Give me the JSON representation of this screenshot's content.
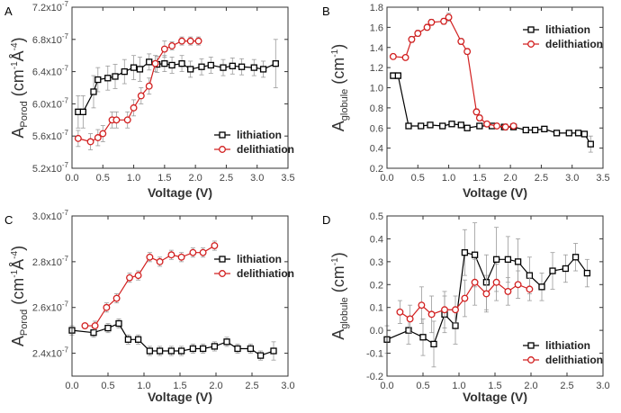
{
  "chart_data": [
    {
      "type": "line",
      "panel": "A",
      "xlabel": "Voltage (V)",
      "ylabel": {
        "main": "A",
        "sub": "Porod",
        "rest": " (cm",
        "sup": "-1",
        "rest2": "Å",
        "sup2": "-4",
        "end": ")"
      },
      "xlim": [
        0,
        3.5
      ],
      "ylim": [
        5.2e-07,
        7.2e-07
      ],
      "xticks": [
        0.0,
        0.5,
        1.0,
        1.5,
        2.0,
        2.5,
        3.0,
        3.5
      ],
      "xtick_labels": [
        "0.0",
        "0.5",
        "1.0",
        "1.5",
        "2.0",
        "2.5",
        "3.0",
        "3.5"
      ],
      "yticks": [
        5.2e-07,
        5.6e-07,
        6e-07,
        6.4e-07,
        6.8e-07,
        7.2e-07
      ],
      "ytick_labels": [
        "5.2x10-7",
        "5.6x10-7",
        "6.0x10-7",
        "6.4x10-7",
        "6.8x10-7",
        "7.2x10-7"
      ],
      "legend_position": "bottom-right",
      "series": [
        {
          "name": "lithiation",
          "color": "#000000",
          "marker": "square",
          "x": [
            0.1,
            0.18,
            0.35,
            0.42,
            0.58,
            0.7,
            0.85,
            1.0,
            1.1,
            1.25,
            1.38,
            1.5,
            1.62,
            1.78,
            1.92,
            2.1,
            2.25,
            2.45,
            2.6,
            2.75,
            2.95,
            3.1,
            3.3
          ],
          "y": [
            5.9e-07,
            5.9e-07,
            6.15e-07,
            6.3e-07,
            6.32e-07,
            6.34e-07,
            6.4e-07,
            6.45e-07,
            6.43e-07,
            6.52e-07,
            6.49e-07,
            6.5e-07,
            6.48e-07,
            6.5e-07,
            6.43e-07,
            6.46e-07,
            6.48e-07,
            6.45e-07,
            6.47e-07,
            6.46e-07,
            6.45e-07,
            6.43e-07,
            6.5e-07
          ],
          "err": [
            2e-08,
            2e-08,
            2e-08,
            1.5e-08,
            1.5e-08,
            1.5e-08,
            1.5e-08,
            1.5e-08,
            1.5e-08,
            1e-08,
            1e-08,
            1e-08,
            1e-08,
            1e-08,
            1e-08,
            1e-08,
            1e-08,
            1e-08,
            1e-08,
            1e-08,
            1e-08,
            1e-08,
            3e-08
          ]
        },
        {
          "name": "delithiation",
          "color": "#d22020",
          "marker": "circle",
          "x": [
            0.1,
            0.3,
            0.42,
            0.5,
            0.65,
            0.72,
            0.9,
            1.0,
            1.12,
            1.25,
            1.35,
            1.5,
            1.62,
            1.78,
            1.92,
            2.05
          ],
          "y": [
            5.57e-07,
            5.53e-07,
            5.58e-07,
            5.63e-07,
            5.8e-07,
            5.8e-07,
            5.8e-07,
            5.95e-07,
            6.1e-07,
            6.22e-07,
            6.5e-07,
            6.68e-07,
            6.72e-07,
            6.78e-07,
            6.78e-07,
            6.78e-07
          ],
          "err": [
            1e-08,
            1e-08,
            1e-08,
            1e-08,
            1e-08,
            1e-08,
            1e-08,
            1e-08,
            1e-08,
            1e-08,
            1e-08,
            1e-08,
            5e-09,
            5e-09,
            5e-09,
            5e-09
          ]
        }
      ]
    },
    {
      "type": "line",
      "panel": "B",
      "xlabel": "Voltage (V)",
      "ylabel": {
        "main": "A",
        "sub": "globule",
        "rest": " (cm",
        "sup": "-1",
        "end": ")"
      },
      "xlim": [
        0,
        3.5
      ],
      "ylim": [
        0.2,
        1.8
      ],
      "xticks": [
        0.0,
        0.5,
        1.0,
        1.5,
        2.0,
        2.5,
        3.0,
        3.5
      ],
      "xtick_labels": [
        "0.0",
        "0.5",
        "1.0",
        "1.5",
        "2.0",
        "2.5",
        "3.0",
        "3.5"
      ],
      "yticks": [
        0.2,
        0.4,
        0.6,
        0.8,
        1.0,
        1.2,
        1.4,
        1.6,
        1.8
      ],
      "ytick_labels": [
        "0.2",
        "0.4",
        "0.6",
        "0.8",
        "1.0",
        "1.2",
        "1.4",
        "1.6",
        "1.8"
      ],
      "legend_position": "top-right",
      "series": [
        {
          "name": "lithiation",
          "color": "#000000",
          "marker": "square",
          "x": [
            0.1,
            0.18,
            0.35,
            0.55,
            0.7,
            0.9,
            1.05,
            1.2,
            1.3,
            1.5,
            1.7,
            1.9,
            2.05,
            2.25,
            2.4,
            2.55,
            2.75,
            2.95,
            3.1,
            3.2,
            3.3
          ],
          "y": [
            1.12,
            1.12,
            0.62,
            0.62,
            0.63,
            0.62,
            0.64,
            0.63,
            0.6,
            0.62,
            0.62,
            0.61,
            0.61,
            0.58,
            0.58,
            0.59,
            0.55,
            0.55,
            0.55,
            0.54,
            0.44
          ],
          "err": [
            0.03,
            0.03,
            0.02,
            0.02,
            0.02,
            0.02,
            0.02,
            0.02,
            0.02,
            0.02,
            0.02,
            0.02,
            0.02,
            0.02,
            0.02,
            0.02,
            0.02,
            0.02,
            0.02,
            0.02,
            0.08
          ]
        },
        {
          "name": "delithiation",
          "color": "#d22020",
          "marker": "circle",
          "x": [
            0.1,
            0.3,
            0.4,
            0.5,
            0.65,
            0.72,
            0.92,
            1.0,
            1.2,
            1.3,
            1.45,
            1.5,
            1.62,
            1.78,
            1.92,
            2.05
          ],
          "y": [
            1.31,
            1.3,
            1.48,
            1.54,
            1.6,
            1.65,
            1.66,
            1.7,
            1.46,
            1.36,
            0.76,
            0.7,
            0.64,
            0.62,
            0.61,
            0.62
          ],
          "err": [
            0.02,
            0.02,
            0.03,
            0.03,
            0.03,
            0.03,
            0.03,
            0.04,
            0.03,
            0.03,
            0.03,
            0.03,
            0.02,
            0.02,
            0.02,
            0.02
          ]
        }
      ]
    },
    {
      "type": "line",
      "panel": "C",
      "xlabel": "Voltage (V)",
      "ylabel": {
        "main": "A",
        "sub": "Porod",
        "rest": " (cm",
        "sup": "-1",
        "rest2": "Å",
        "sup2": "-4",
        "end": ")"
      },
      "xlim": [
        0,
        3.0
      ],
      "ylim": [
        2.3e-07,
        3e-07
      ],
      "xticks": [
        0.0,
        0.5,
        1.0,
        1.5,
        2.0,
        2.5,
        3.0
      ],
      "xtick_labels": [
        "0.0",
        "0.5",
        "1.0",
        "1.5",
        "2.0",
        "2.5",
        "3.0"
      ],
      "yticks": [
        2.4e-07,
        2.6e-07,
        2.8e-07,
        3e-07
      ],
      "ytick_labels": [
        "2.4x10-7",
        "2.6x10-7",
        "2.8x10-7",
        "3.0x10-7"
      ],
      "legend_position": "top-right",
      "series": [
        {
          "name": "lithiation",
          "color": "#000000",
          "marker": "square",
          "x": [
            0.0,
            0.3,
            0.5,
            0.65,
            0.78,
            0.92,
            1.08,
            1.22,
            1.38,
            1.52,
            1.68,
            1.82,
            1.98,
            2.15,
            2.3,
            2.48,
            2.62,
            2.8
          ],
          "y": [
            2.5e-07,
            2.49e-07,
            2.51e-07,
            2.53e-07,
            2.46e-07,
            2.46e-07,
            2.41e-07,
            2.41e-07,
            2.41e-07,
            2.41e-07,
            2.42e-07,
            2.42e-07,
            2.43e-07,
            2.45e-07,
            2.42e-07,
            2.42e-07,
            2.39e-07,
            2.41e-07
          ],
          "err": [
            2e-09,
            2e-09,
            2e-09,
            2e-09,
            2e-09,
            2e-09,
            2e-09,
            2e-09,
            2e-09,
            2e-09,
            2e-09,
            2e-09,
            2e-09,
            2e-09,
            2e-09,
            2e-09,
            2e-09,
            4e-09
          ]
        },
        {
          "name": "delithiation",
          "color": "#d22020",
          "marker": "circle",
          "x": [
            0.18,
            0.32,
            0.48,
            0.62,
            0.8,
            0.92,
            1.08,
            1.22,
            1.38,
            1.52,
            1.68,
            1.82,
            1.98
          ],
          "y": [
            2.52e-07,
            2.52e-07,
            2.6e-07,
            2.64e-07,
            2.73e-07,
            2.74e-07,
            2.82e-07,
            2.8e-07,
            2.83e-07,
            2.82e-07,
            2.84e-07,
            2.84e-07,
            2.87e-07
          ],
          "err": [
            1e-09,
            2e-09,
            2e-09,
            2e-09,
            2e-09,
            2e-09,
            2e-09,
            2e-09,
            2e-09,
            2e-09,
            2e-09,
            2e-09,
            2e-09
          ]
        }
      ]
    },
    {
      "type": "line",
      "panel": "D",
      "xlabel": "Voltage (V)",
      "ylabel": {
        "main": "A",
        "sub": "globule",
        "rest": " (cm",
        "sup": "-1",
        "end": ")"
      },
      "xlim": [
        0,
        3.0
      ],
      "ylim": [
        -0.2,
        0.5
      ],
      "xticks": [
        0.0,
        0.5,
        1.0,
        1.5,
        2.0,
        2.5,
        3.0
      ],
      "xtick_labels": [
        "0.0",
        "0.5",
        "1.0",
        "1.5",
        "2.0",
        "2.5",
        "3.0"
      ],
      "yticks": [
        -0.2,
        -0.1,
        0.0,
        0.1,
        0.2,
        0.3,
        0.4,
        0.5
      ],
      "ytick_labels": [
        "-0.2",
        "-0.1",
        "0.0",
        "0.1",
        "0.2",
        "0.3",
        "0.4",
        "0.5"
      ],
      "legend_position": "bottom-right",
      "series": [
        {
          "name": "lithiation",
          "color": "#000000",
          "marker": "square",
          "x": [
            0.0,
            0.3,
            0.5,
            0.65,
            0.8,
            0.95,
            1.08,
            1.22,
            1.38,
            1.52,
            1.68,
            1.82,
            1.98,
            2.15,
            2.3,
            2.48,
            2.62,
            2.78
          ],
          "y": [
            -0.04,
            0.0,
            -0.03,
            -0.06,
            0.07,
            0.02,
            0.34,
            0.33,
            0.21,
            0.31,
            0.31,
            0.3,
            0.24,
            0.19,
            0.26,
            0.27,
            0.32,
            0.25
          ],
          "err": [
            0.06,
            0.06,
            0.08,
            0.1,
            0.08,
            0.08,
            0.1,
            0.14,
            0.12,
            0.14,
            0.1,
            0.1,
            0.08,
            0.06,
            0.08,
            0.06,
            0.06,
            0.06
          ]
        },
        {
          "name": "delithiation",
          "color": "#d22020",
          "marker": "circle",
          "x": [
            0.18,
            0.32,
            0.48,
            0.62,
            0.8,
            0.95,
            1.08,
            1.22,
            1.38,
            1.52,
            1.68,
            1.82,
            1.98
          ],
          "y": [
            0.08,
            0.05,
            0.11,
            0.07,
            0.09,
            0.09,
            0.14,
            0.21,
            0.16,
            0.21,
            0.17,
            0.2,
            0.18
          ],
          "err": [
            0.05,
            0.06,
            0.08,
            0.08,
            0.08,
            0.06,
            0.08,
            0.1,
            0.08,
            0.08,
            0.06,
            0.06,
            0.05
          ]
        }
      ]
    }
  ]
}
